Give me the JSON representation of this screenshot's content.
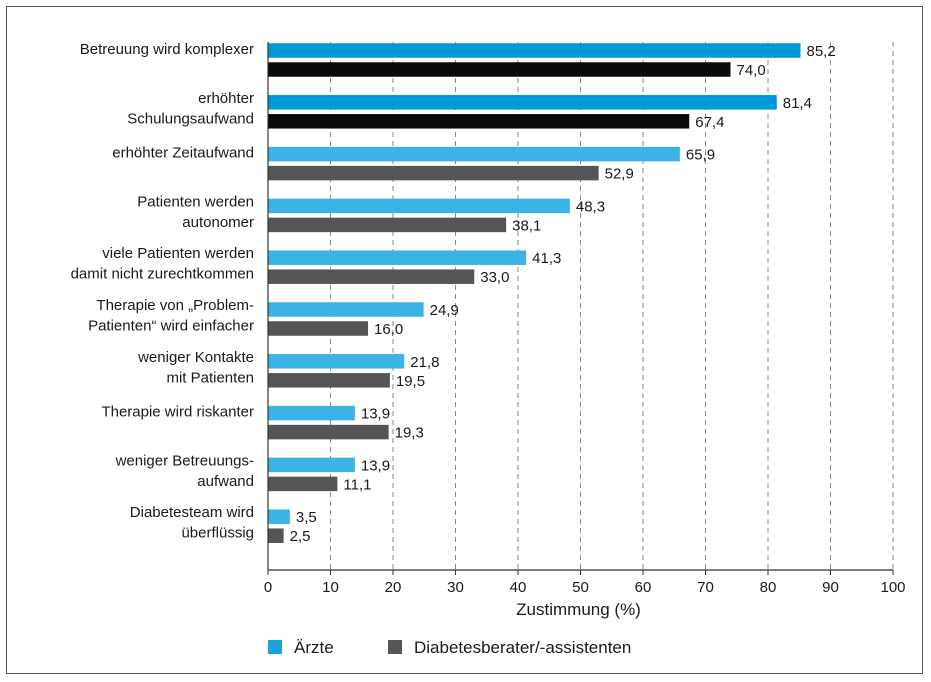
{
  "chart_data": {
    "type": "bar",
    "orientation": "horizontal",
    "categories": [
      [
        "Betreuung wird komplexer"
      ],
      [
        "erhöhter",
        "Schulungsaufwand"
      ],
      [
        "erhöhter Zeitaufwand"
      ],
      [
        "Patienten werden",
        "autonomer"
      ],
      [
        "viele Patienten werden",
        "damit nicht zurechtkommen"
      ],
      [
        "Therapie von „Problem-",
        "Patienten“ wird einfacher"
      ],
      [
        "weniger Kontakte",
        "mit Patienten"
      ],
      [
        "Therapie wird riskanter"
      ],
      [
        "weniger Betreuungs-",
        "aufwand"
      ],
      [
        "Diabetesteam wird",
        "überflüssig"
      ]
    ],
    "series": [
      {
        "name": "Ärzte",
        "values": [
          85.2,
          81.4,
          65.9,
          48.3,
          41.3,
          24.9,
          21.8,
          13.9,
          13.9,
          3.5
        ],
        "labels": [
          "85,2",
          "81,4",
          "65,9",
          "48,3",
          "41,3",
          "24,9",
          "21,8",
          "13,9",
          "13,9",
          "3,5"
        ],
        "colors": [
          "#0099d8",
          "#0099d8",
          "#3bb3e6",
          "#3bb3e6",
          "#3bb3e6",
          "#3bb3e6",
          "#3bb3e6",
          "#3bb3e6",
          "#3bb3e6",
          "#3bb3e6"
        ],
        "legend_color": "#1aa3e0"
      },
      {
        "name": "Diabetesberater/-assistenten",
        "values": [
          74.0,
          67.4,
          52.9,
          38.1,
          33.0,
          16.0,
          19.5,
          19.3,
          11.1,
          2.5
        ],
        "labels": [
          "74,0",
          "67,4",
          "52,9",
          "38,1",
          "33,0",
          "16,0",
          "19,5",
          "19,3",
          "11,1",
          "2,5"
        ],
        "colors": [
          "#0a0a0a",
          "#0a0a0a",
          "#555555",
          "#555555",
          "#555555",
          "#555555",
          "#555555",
          "#555555",
          "#555555",
          "#555555"
        ],
        "legend_color": "#555555"
      }
    ],
    "xlim": [
      0,
      100
    ],
    "xticks": [
      0,
      10,
      20,
      30,
      40,
      50,
      60,
      70,
      80,
      90,
      100
    ],
    "xlabel": "Zustimmung (%)",
    "grid": "vertical dashed",
    "legend_position": "bottom"
  }
}
